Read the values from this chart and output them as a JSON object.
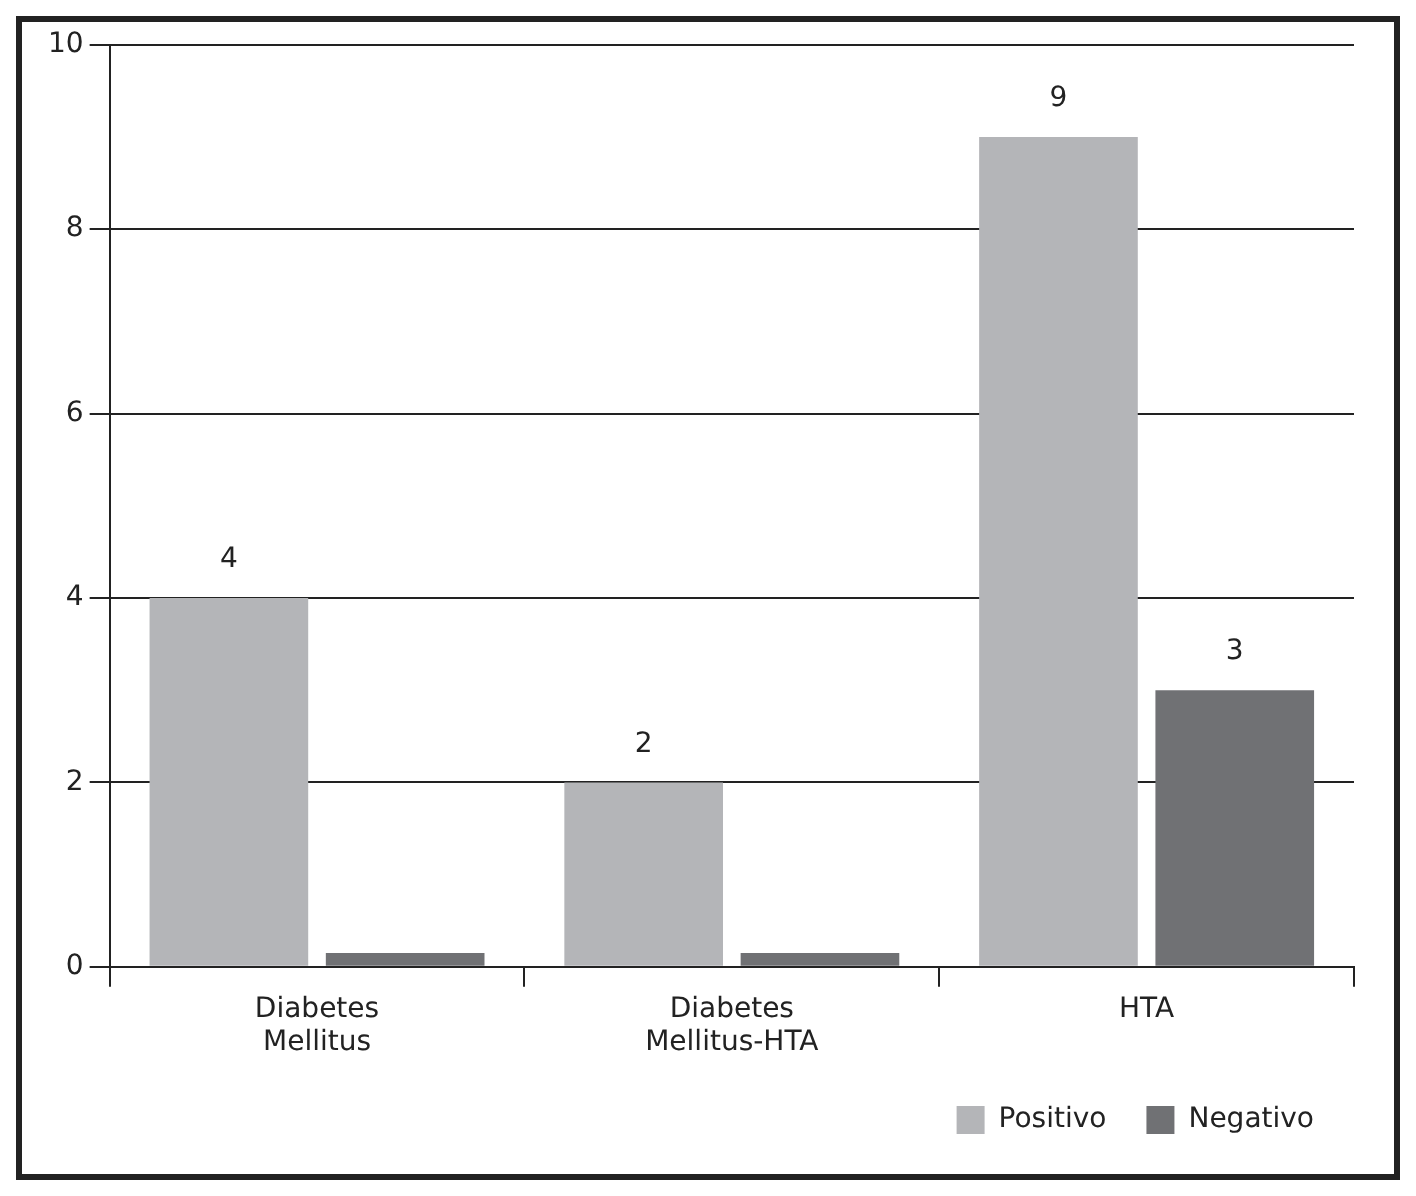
{
  "chart_data": {
    "type": "bar",
    "categories": [
      "Diabetes Mellitus",
      "Diabetes Mellitus-HTA",
      "HTA"
    ],
    "series": [
      {
        "name": "Positivo",
        "color": "#b4b5b8",
        "values": [
          4,
          2,
          9
        ],
        "value_labels": [
          "4",
          "2",
          "9"
        ]
      },
      {
        "name": "Negativo",
        "color": "#707174",
        "values": [
          0.15,
          0.15,
          3
        ],
        "value_labels": [
          null,
          null,
          "3"
        ]
      }
    ],
    "ylim": [
      0,
      10
    ],
    "yticks": [
      0,
      2,
      4,
      6,
      8,
      10
    ],
    "grid": "y",
    "legend": "bottom right"
  }
}
